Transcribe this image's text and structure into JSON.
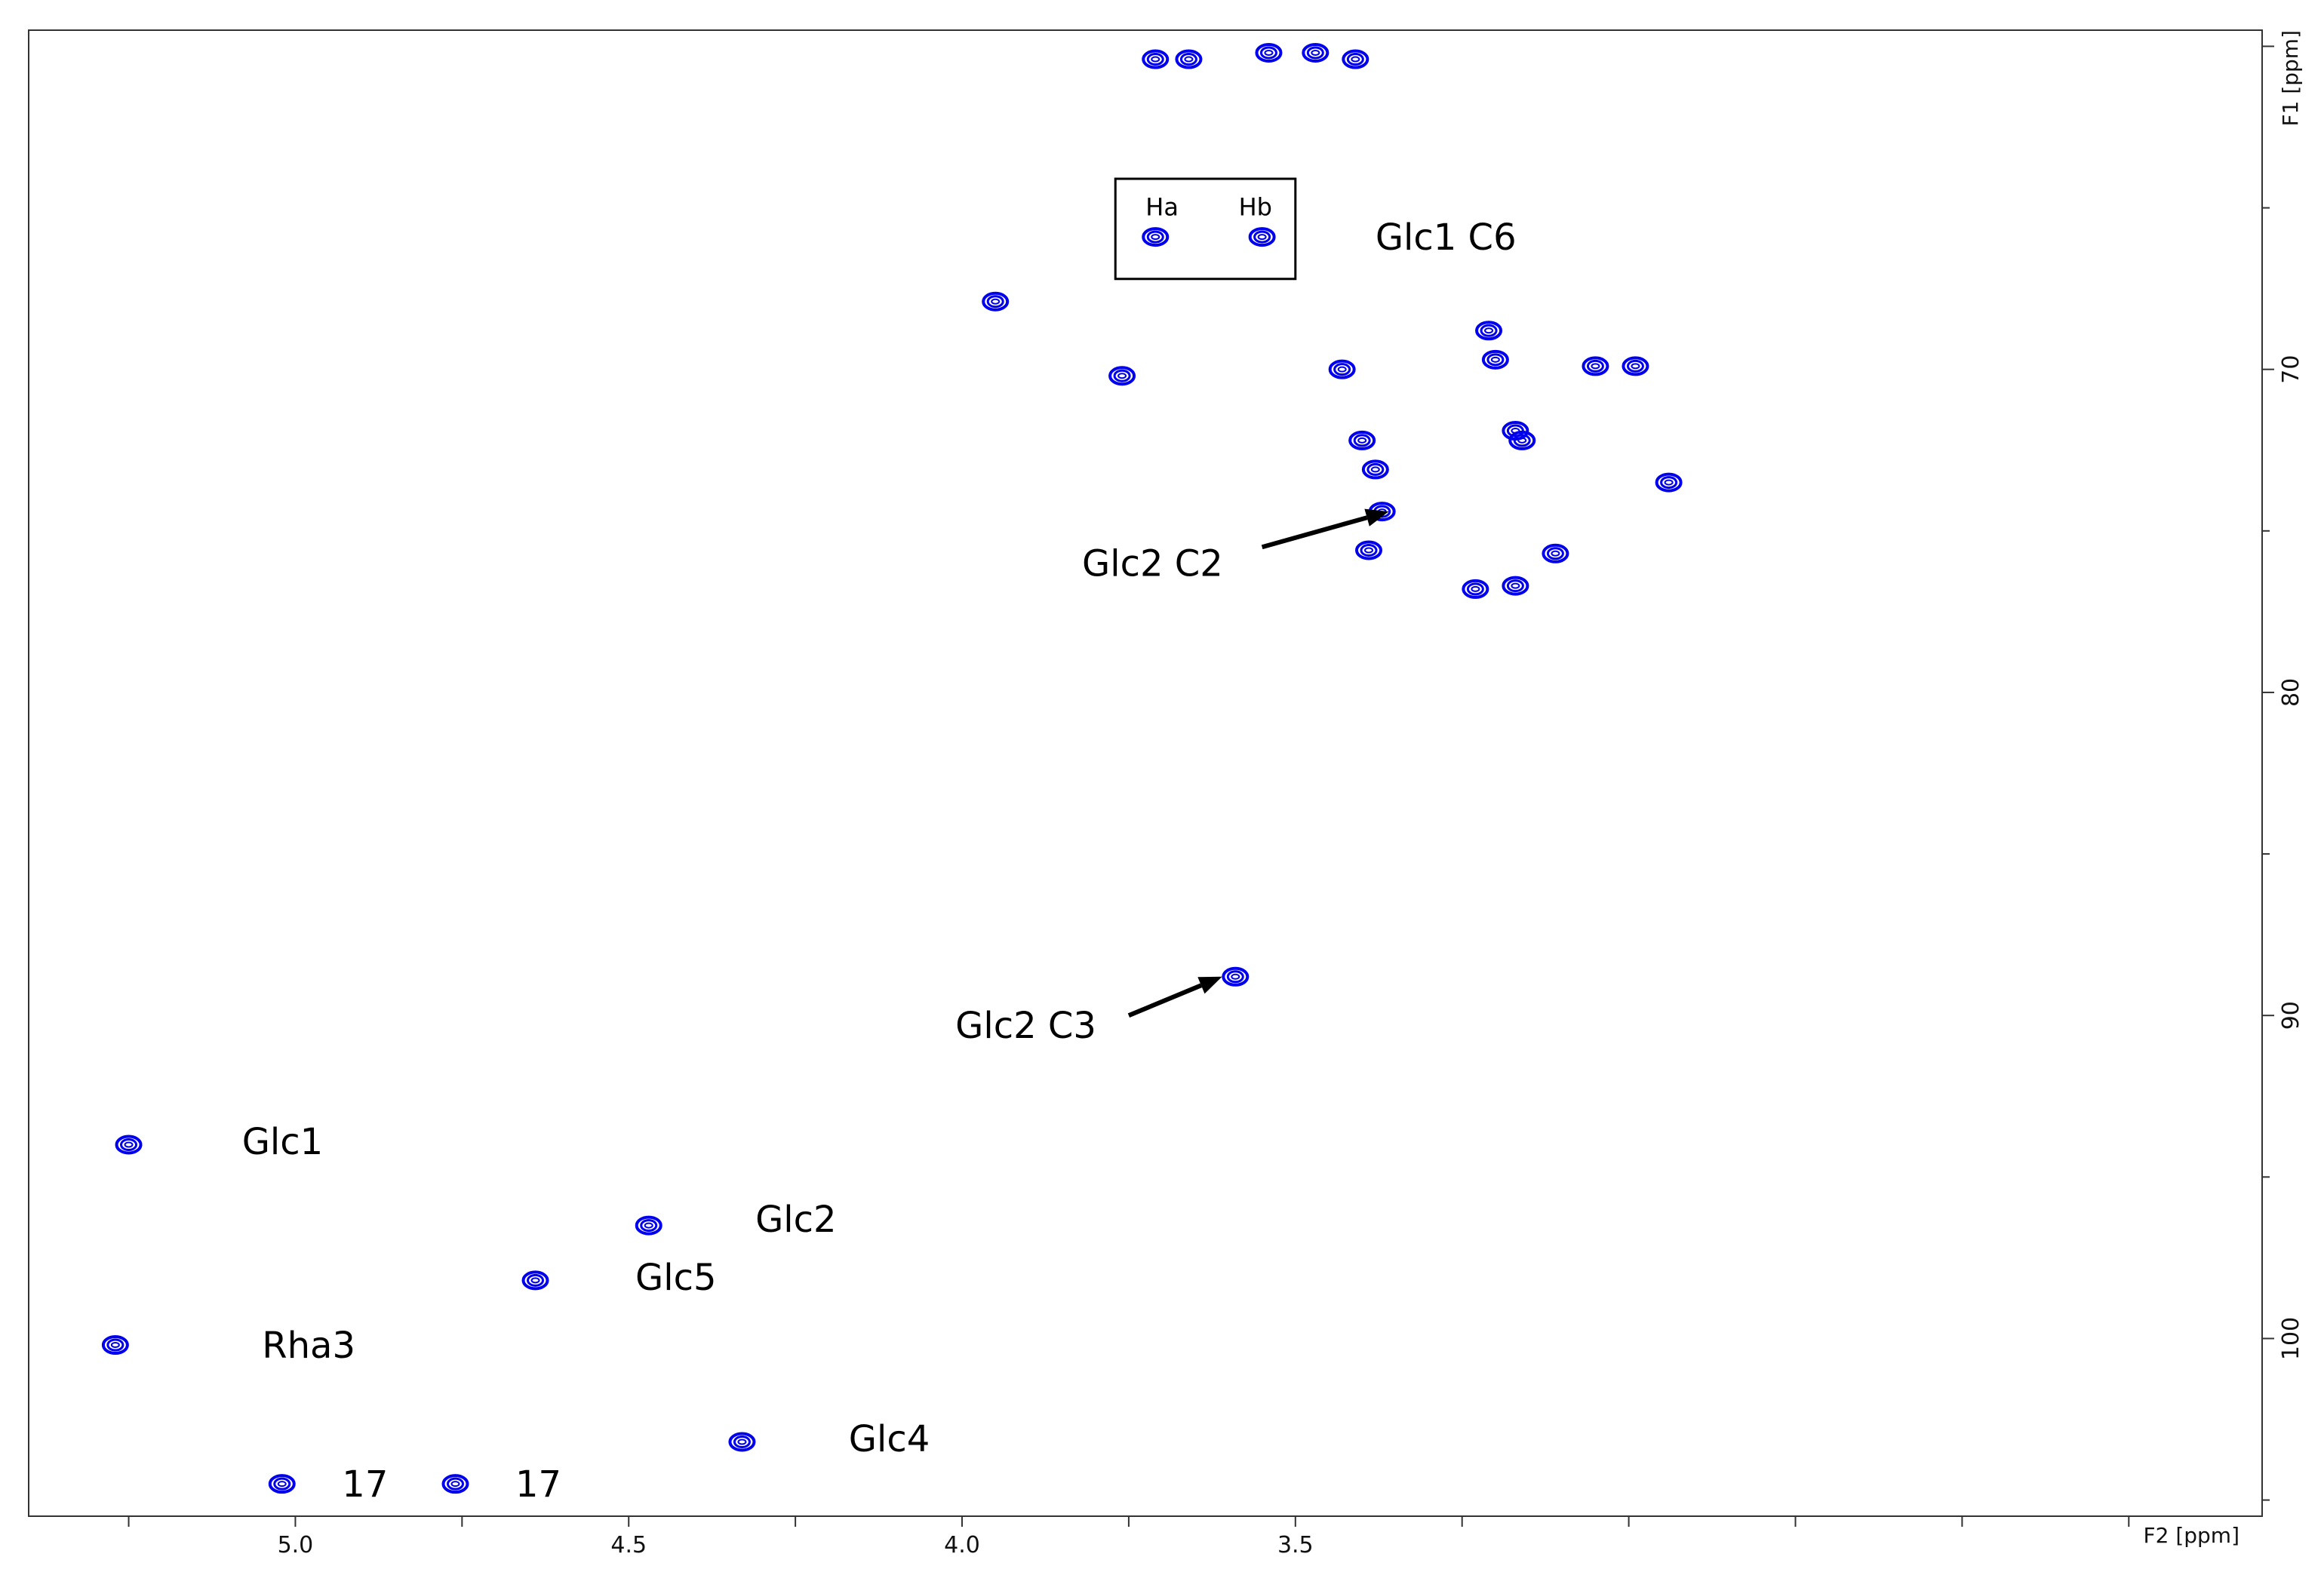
{
  "chart_data": {
    "type": "scatter",
    "title": "",
    "xlabel": "F2 [ppm]",
    "ylabel": "F1 [ppm]",
    "xlim": [
      5.4,
      2.05
    ],
    "ylim": [
      59.5,
      105.5
    ],
    "x_ticks": [
      "5.0",
      "4.5",
      "4.0",
      "3.5"
    ],
    "y_ticks": [
      "70",
      "80",
      "90",
      "100"
    ],
    "x_tick_values": [
      5.0,
      4.5,
      4.0,
      3.5
    ],
    "y_tick_values": [
      70,
      80,
      90,
      100
    ],
    "peak_color": "#0000ee",
    "peaks": [
      {
        "x": 5.25,
        "y": 94.0
      },
      {
        "x": 5.27,
        "y": 100.2
      },
      {
        "x": 5.02,
        "y": 104.5
      },
      {
        "x": 4.76,
        "y": 104.5
      },
      {
        "x": 4.64,
        "y": 98.2
      },
      {
        "x": 4.47,
        "y": 96.5
      },
      {
        "x": 4.33,
        "y": 103.2
      },
      {
        "x": 3.59,
        "y": 88.8
      },
      {
        "x": 3.71,
        "y": 60.4
      },
      {
        "x": 3.66,
        "y": 60.4
      },
      {
        "x": 3.54,
        "y": 60.2
      },
      {
        "x": 3.47,
        "y": 60.2
      },
      {
        "x": 3.41,
        "y": 60.4
      },
      {
        "x": 3.71,
        "y": 65.9
      },
      {
        "x": 3.55,
        "y": 65.9
      },
      {
        "x": 3.95,
        "y": 67.9
      },
      {
        "x": 3.76,
        "y": 70.2
      },
      {
        "x": 3.43,
        "y": 70.0
      },
      {
        "x": 3.4,
        "y": 72.2
      },
      {
        "x": 3.38,
        "y": 73.1
      },
      {
        "x": 3.37,
        "y": 74.4
      },
      {
        "x": 3.39,
        "y": 75.6
      },
      {
        "x": 3.21,
        "y": 68.8
      },
      {
        "x": 3.2,
        "y": 69.7
      },
      {
        "x": 3.17,
        "y": 71.9
      },
      {
        "x": 3.16,
        "y": 72.2
      },
      {
        "x": 3.23,
        "y": 76.8
      },
      {
        "x": 3.17,
        "y": 76.7
      },
      {
        "x": 3.11,
        "y": 75.7
      },
      {
        "x": 3.05,
        "y": 69.9
      },
      {
        "x": 2.99,
        "y": 69.9
      },
      {
        "x": 2.94,
        "y": 73.5
      }
    ],
    "annotations": [
      {
        "text": "Glc1",
        "x": 5.08,
        "y": 93.9
      },
      {
        "text": "Rha3",
        "x": 5.05,
        "y": 100.2
      },
      {
        "text": "17",
        "x": 4.93,
        "y": 104.5
      },
      {
        "text": "17",
        "x": 4.67,
        "y": 104.5
      },
      {
        "text": "Glc5",
        "x": 4.49,
        "y": 98.1
      },
      {
        "text": "Glc2",
        "x": 4.31,
        "y": 96.3
      },
      {
        "text": "Glc4",
        "x": 4.17,
        "y": 103.1
      },
      {
        "text": "Glc1 C6",
        "x": 3.38,
        "y": 65.9
      },
      {
        "text": "Glc2 C2",
        "x": 3.82,
        "y": 76.0
      },
      {
        "text": "Glc2 C3",
        "x": 4.01,
        "y": 90.3
      }
    ],
    "arrows": [
      {
        "from": [
          3.55,
          75.5
        ],
        "to": [
          3.36,
          74.4
        ]
      },
      {
        "from": [
          3.75,
          90.0
        ],
        "to": [
          3.61,
          88.8
        ]
      }
    ],
    "box": {
      "x_range": [
        3.77,
        3.5
      ],
      "y_range": [
        64.1,
        67.2
      ]
    },
    "box_labels": [
      {
        "text": "Ha",
        "x": 3.7,
        "y": 65.0
      },
      {
        "text": "Hb",
        "x": 3.56,
        "y": 65.0
      }
    ]
  }
}
